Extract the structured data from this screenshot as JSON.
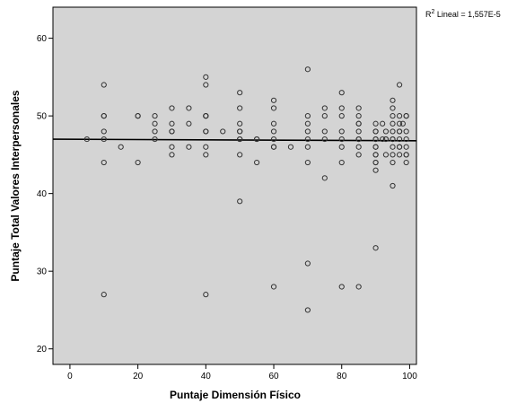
{
  "chart_data": {
    "type": "scatter",
    "xlabel": "Puntaje Dimensión Físico",
    "ylabel": "Puntaje Total Valores Interpersonales",
    "xlim": [
      -5,
      102
    ],
    "ylim": [
      18,
      64
    ],
    "x_ticks": [
      0,
      20,
      40,
      60,
      80,
      100
    ],
    "y_ticks": [
      20,
      30,
      40,
      50,
      60
    ],
    "grid": false,
    "background_color": "#d4d4d4",
    "marker_color": "#333333",
    "fit_line": {
      "type": "linear",
      "label_r2": "R",
      "label_sup": "2",
      "label_text": " Lineal = 1,557E-5",
      "x": [
        -5,
        102
      ],
      "y": [
        47.0,
        46.8
      ],
      "color": "#000000"
    },
    "points": {
      "x": [
        5,
        10,
        10,
        10,
        10,
        10,
        10,
        10,
        15,
        20,
        20,
        20,
        25,
        25,
        25,
        25,
        30,
        30,
        30,
        30,
        30,
        30,
        35,
        35,
        35,
        40,
        40,
        40,
        40,
        40,
        40,
        40,
        40,
        40,
        40,
        45,
        50,
        50,
        50,
        50,
        50,
        50,
        50,
        50,
        50,
        55,
        55,
        55,
        60,
        60,
        60,
        60,
        60,
        60,
        60,
        60,
        65,
        70,
        70,
        70,
        70,
        70,
        70,
        70,
        70,
        70,
        75,
        75,
        75,
        75,
        75,
        80,
        80,
        80,
        80,
        80,
        80,
        80,
        80,
        85,
        85,
        85,
        85,
        85,
        85,
        85,
        85,
        85,
        85,
        90,
        90,
        90,
        90,
        90,
        90,
        90,
        90,
        90,
        90,
        90,
        90,
        90,
        92,
        92,
        93,
        93,
        93,
        93,
        95,
        95,
        95,
        95,
        95,
        95,
        95,
        95,
        95,
        95,
        95,
        97,
        97,
        97,
        97,
        97,
        97,
        97,
        97,
        97,
        98,
        99,
        99,
        99,
        99,
        99,
        99,
        99,
        99
      ],
      "y": [
        47,
        54,
        50,
        50,
        48,
        47,
        44,
        27,
        46,
        50,
        50,
        44,
        50,
        49,
        48,
        47,
        51,
        49,
        48,
        46,
        45,
        48,
        51,
        49,
        46,
        55,
        54,
        50,
        50,
        48,
        46,
        45,
        50,
        48,
        27,
        48,
        53,
        51,
        49,
        48,
        48,
        47,
        45,
        39,
        47,
        47,
        47,
        44,
        52,
        51,
        49,
        48,
        47,
        46,
        46,
        28,
        46,
        56,
        49,
        48,
        46,
        44,
        31,
        25,
        47,
        50,
        50,
        48,
        47,
        42,
        51,
        51,
        50,
        48,
        47,
        46,
        44,
        28,
        53,
        51,
        50,
        49,
        48,
        47,
        47,
        46,
        45,
        28,
        49,
        48,
        47,
        46,
        46,
        45,
        45,
        44,
        44,
        43,
        33,
        48,
        47,
        49,
        47,
        49,
        48,
        47,
        47,
        45,
        52,
        51,
        50,
        49,
        48,
        47,
        47,
        46,
        45,
        44,
        41,
        54,
        50,
        49,
        48,
        47,
        46,
        46,
        45,
        48,
        49,
        50,
        50,
        48,
        47,
        46,
        45,
        45,
        44
      ]
    }
  }
}
